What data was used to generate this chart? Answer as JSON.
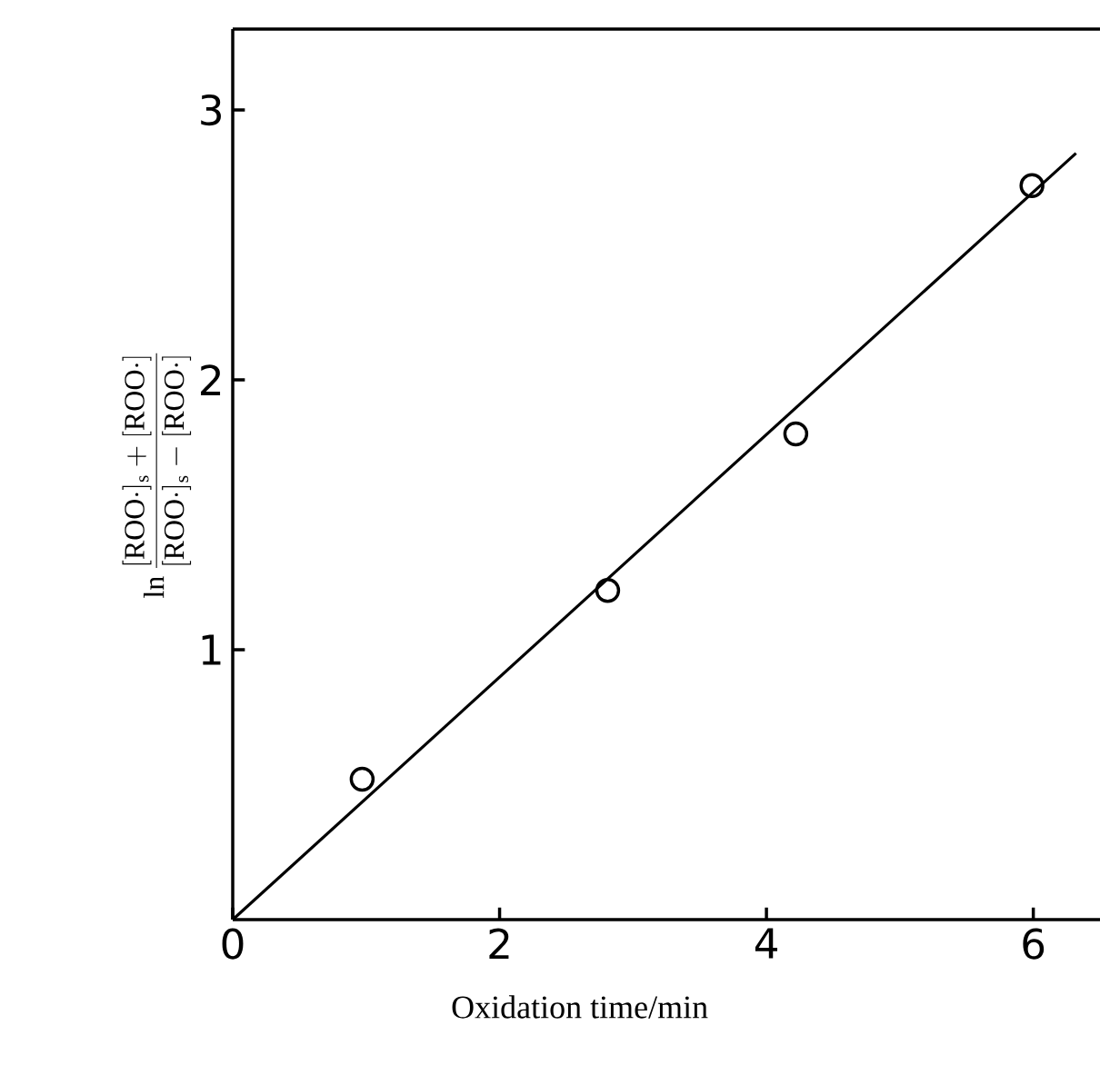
{
  "chart_data": {
    "type": "scatter",
    "xlabel": "Oxidation time/min",
    "ylabel": "\\ln\\frac{[\\mathrm{ROO}\\cdot]_{\\mathrm{s}}+[\\mathrm{ROO}\\cdot]}{[\\mathrm{ROO}\\cdot]_{\\mathrm{s}}-[\\mathrm{ROO}\\cdot]}",
    "series": [
      {
        "marker": "circle",
        "color": "#000000",
        "x": [
          0.97,
          2.81,
          4.22,
          5.99
        ],
        "values": [
          0.52,
          1.22,
          1.8,
          2.72
        ]
      },
      {
        "type": "line",
        "marker": "none",
        "color": "#000000",
        "x": [
          0,
          6.32
        ],
        "values": [
          0,
          2.84
        ]
      }
    ],
    "xlim": [
      0,
      6.5
    ],
    "ylim": [
      0,
      3.3
    ],
    "xticks": [
      0,
      2,
      4,
      6
    ],
    "yticks": [
      1,
      2,
      3
    ],
    "grid": false
  }
}
